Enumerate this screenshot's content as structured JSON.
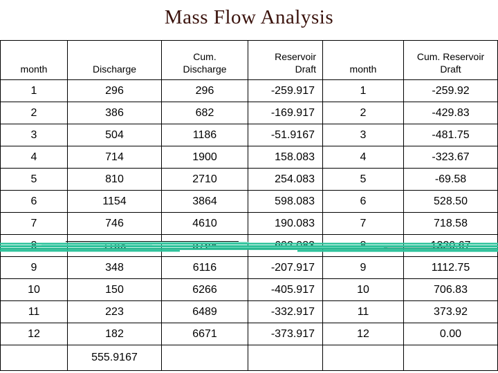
{
  "page": {
    "title": "Mass Flow Analysis"
  },
  "colors": {
    "title_text": "#3a120c",
    "table_border": "#000000",
    "cell_text": "#000000",
    "scribble_teal": "#2cc39b",
    "scribble_teal_dark": "#22b68d",
    "scribble_teal_light": "#8fe0cb",
    "background": "#ffffff"
  },
  "table": {
    "columns": [
      {
        "id": "month-left",
        "label": "month",
        "align": "center"
      },
      {
        "id": "discharge",
        "label": "Discharge",
        "align": "center"
      },
      {
        "id": "cum-discharge",
        "label": "Cum.\nDischarge",
        "align": "center"
      },
      {
        "id": "reservoir-draft",
        "label": "Reservoir\nDraft",
        "align": "right"
      },
      {
        "id": "month-right",
        "label": "month",
        "align": "center"
      },
      {
        "id": "cum-reservoir-draft",
        "label": "Cum. Reservoir\nDraft",
        "align": "center"
      }
    ],
    "data_aligns": [
      "center",
      "center",
      "center",
      "right",
      "center",
      "center"
    ],
    "rows": [
      [
        "1",
        "296",
        "296",
        "-259.917",
        "1",
        "-259.92"
      ],
      [
        "2",
        "386",
        "682",
        "-169.917",
        "2",
        "-429.83"
      ],
      [
        "3",
        "504",
        "1186",
        "-51.9167",
        "3",
        "-481.75"
      ],
      [
        "4",
        "714",
        "1900",
        "158.083",
        "4",
        "-323.67"
      ],
      [
        "5",
        "810",
        "2710",
        "254.083",
        "5",
        "-69.58"
      ],
      [
        "6",
        "1154",
        "3864",
        "598.083",
        "6",
        "528.50"
      ],
      [
        "7",
        "746",
        "4610",
        "190.083",
        "7",
        "718.58"
      ],
      [
        "8",
        "1158",
        "5768",
        "602.083",
        "8",
        "1320.67"
      ],
      [
        "9",
        "348",
        "6116",
        "-207.917",
        "9",
        "1112.75"
      ],
      [
        "10",
        "150",
        "6266",
        "-405.917",
        "10",
        "706.83"
      ],
      [
        "11",
        "223",
        "6489",
        "-332.917",
        "11",
        "373.92"
      ],
      [
        "12",
        "182",
        "6671",
        "-373.917",
        "12",
        "0.00"
      ]
    ],
    "total_row": [
      "",
      "555.9167",
      "",
      "",
      "",
      ""
    ]
  },
  "annotation": {
    "name": "teal-scribble-band",
    "description_color": "#2cc39b"
  }
}
